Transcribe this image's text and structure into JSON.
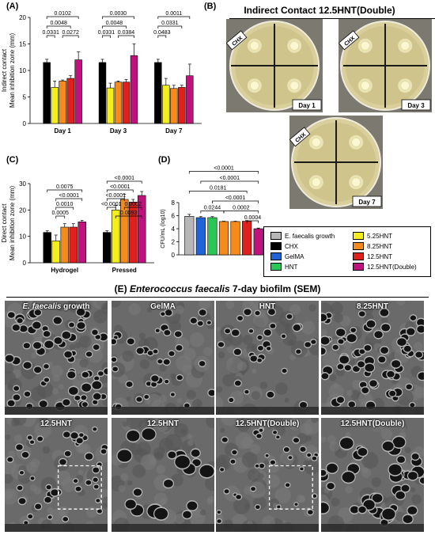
{
  "panels": {
    "A": "(A)",
    "B": "(B)",
    "C": "(C)",
    "D": "(D)",
    "E": "(E)"
  },
  "colors": {
    "E. faecalis growth": "#b7b7b7",
    "CHX": "#000000",
    "GelMA": "#1f63d6",
    "HNT": "#2bc754",
    "5.25HNT": "#f4ee1f",
    "8.25HNT": "#f58a1d",
    "12.5HNT": "#e0201c",
    "12.5HNT(Double)": "#c0127c"
  },
  "chart_data": [
    {
      "id": "A",
      "type": "bar",
      "ylabel_lines": [
        "Indirect contact",
        "Mean inhibition zone (mm)"
      ],
      "ylim": [
        0,
        20
      ],
      "yticks": [
        0,
        5,
        10,
        15,
        20
      ],
      "categories": [
        "Day 1",
        "Day 3",
        "Day 7"
      ],
      "series": [
        {
          "name": "CHX",
          "values": [
            11.5,
            11.5,
            11.5
          ],
          "err": [
            0.6,
            0.6,
            0.6
          ]
        },
        {
          "name": "5.25HNT",
          "values": [
            6.8,
            6.7,
            7.2
          ],
          "err": [
            1.2,
            0.9,
            1.3
          ]
        },
        {
          "name": "8.25HNT",
          "values": [
            8.0,
            7.8,
            6.6
          ],
          "err": [
            0.2,
            0.2,
            0.6
          ]
        },
        {
          "name": "12.5HNT",
          "values": [
            8.5,
            7.8,
            6.8
          ],
          "err": [
            0.5,
            0.5,
            0.4
          ]
        },
        {
          "name": "12.5HNT(Double)",
          "values": [
            12.0,
            12.8,
            9.0
          ],
          "err": [
            1.5,
            2.2,
            2.2
          ]
        }
      ],
      "brackets": [
        {
          "group": 0,
          "from": 0,
          "to": 4,
          "label": "0.0102",
          "level": 3
        },
        {
          "group": 0,
          "from": 0,
          "to": 3,
          "label": "0.0048",
          "level": 2
        },
        {
          "group": 0,
          "from": 0,
          "to": 1,
          "label": "0.0331",
          "level": 1
        },
        {
          "group": 0,
          "from": 2,
          "to": 4,
          "label": "0.0272",
          "level": 1
        },
        {
          "group": 1,
          "from": 0,
          "to": 4,
          "label": "0.0030",
          "level": 3
        },
        {
          "group": 1,
          "from": 0,
          "to": 3,
          "label": "0.0048",
          "level": 2
        },
        {
          "group": 1,
          "from": 0,
          "to": 1,
          "label": "0.0331",
          "level": 1
        },
        {
          "group": 1,
          "from": 2,
          "to": 4,
          "label": "0.0384",
          "level": 1
        },
        {
          "group": 2,
          "from": 0,
          "to": 4,
          "label": "0.0011",
          "level": 3
        },
        {
          "group": 2,
          "from": 0,
          "to": 3,
          "label": "0.0331",
          "level": 2
        },
        {
          "group": 2,
          "from": 0,
          "to": 1,
          "label": "0.0483",
          "level": 1
        }
      ]
    },
    {
      "id": "C",
      "type": "bar",
      "ylabel_lines": [
        "Direct contact",
        "Mean inhibition zone (mm)"
      ],
      "ylim": [
        0,
        30
      ],
      "yticks": [
        0,
        10,
        20,
        30
      ],
      "categories": [
        "Hydrogel",
        "Pressed"
      ],
      "series": [
        {
          "name": "CHX",
          "values": [
            11.5,
            11.5
          ],
          "err": [
            0.6,
            0.6
          ]
        },
        {
          "name": "5.25HNT",
          "values": [
            8.3,
            20.0
          ],
          "err": [
            2.2,
            1.8
          ]
        },
        {
          "name": "8.25HNT",
          "values": [
            13.5,
            24.0
          ],
          "err": [
            1.3,
            2.0
          ]
        },
        {
          "name": "12.5HNT",
          "values": [
            13.5,
            23.0
          ],
          "err": [
            1.3,
            1.0
          ]
        },
        {
          "name": "12.5HNT(Double)",
          "values": [
            15.5,
            25.5
          ],
          "err": [
            0.6,
            1.5
          ]
        }
      ],
      "brackets": [
        {
          "group": 0,
          "from": 0,
          "to": 4,
          "label": "0.0075",
          "level": 4
        },
        {
          "group": 0,
          "from": 1,
          "to": 4,
          "label": "<0.0001",
          "level": 3
        },
        {
          "group": 0,
          "from": 1,
          "to": 3,
          "label": "0.0010",
          "level": 2
        },
        {
          "group": 0,
          "from": 1,
          "to": 2,
          "label": "0.0005",
          "level": 1
        },
        {
          "group": 1,
          "from": 0,
          "to": 4,
          "label": "<0.0001",
          "level": 5
        },
        {
          "group": 1,
          "from": 0,
          "to": 3,
          "label": "<0.0001",
          "level": 4
        },
        {
          "group": 1,
          "from": 0,
          "to": 2,
          "label": "<0.0001",
          "level": 3
        },
        {
          "group": 1,
          "from": 0,
          "to": 1,
          "label": "<0.0001",
          "level": 2
        },
        {
          "group": 1,
          "from": 2,
          "to": 4,
          "label": "0.0002",
          "level": 2
        },
        {
          "group": 1,
          "from": 1,
          "to": 4,
          "label": "0.0093",
          "level": 1
        }
      ]
    },
    {
      "id": "D",
      "type": "bar",
      "ylabel": "CFU/mL (log10)",
      "ylim": [
        0,
        8
      ],
      "yticks": [
        0,
        2,
        4,
        6,
        8
      ],
      "categories": [
        "E. faecalis growth",
        "CHX",
        "GelMA",
        "HNT",
        "8.25HNT",
        "12.5HNT",
        "12.5HNT(Double)"
      ],
      "values": [
        5.9,
        5.7,
        5.7,
        5.1,
        5.1,
        5.15,
        4.0
      ],
      "err": [
        0.3,
        0.15,
        0.15,
        0.05,
        0.05,
        0.1,
        0.1
      ],
      "bar_colors": [
        "#b7b7b7",
        "#1f63d6",
        "#2bc754",
        "#f58a1d",
        "#f58a1d",
        "#e0201c",
        "#c0127c"
      ],
      "brackets": [
        {
          "from": 0,
          "to": 6,
          "label": "<0.0001",
          "level": 6
        },
        {
          "from": 1,
          "to": 6,
          "label": "<0.0001",
          "level": 5
        },
        {
          "from": 0,
          "to": 5,
          "label": "0.0181",
          "level": 4
        },
        {
          "from": 2,
          "to": 6,
          "label": "<0.0001",
          "level": 3
        },
        {
          "from": 1,
          "to": 3,
          "label": "0.0244",
          "level": 2
        },
        {
          "from": 3,
          "to": 6,
          "label": "0.0002",
          "level": 2
        },
        {
          "from": 5,
          "to": 6,
          "label": "0.0004",
          "level": 1
        }
      ]
    }
  ],
  "legend": [
    {
      "name": "E. faecalis growth",
      "color": "#b7b7b7"
    },
    {
      "name": "5.25HNT",
      "color": "#f4ee1f"
    },
    {
      "name": "CHX",
      "color": "#000000"
    },
    {
      "name": "8.25HNT",
      "color": "#f58a1d"
    },
    {
      "name": "GelMA",
      "color": "#1f63d6"
    },
    {
      "name": "12.5HNT",
      "color": "#e0201c"
    },
    {
      "name": "HNT",
      "color": "#2bc754"
    },
    {
      "name": "12.5HNT(Double)",
      "color": "#c0127c"
    }
  ],
  "panel_b": {
    "title": "Indirect Contact 12.5HNT(Double)",
    "plates": [
      {
        "label": "CHX",
        "day": "Day 1"
      },
      {
        "label": "CHX",
        "day": "Day 3"
      },
      {
        "label": "CHX",
        "day": "Day 7"
      }
    ]
  },
  "panel_e": {
    "title_italic": "Enterococcus faecalis",
    "title_rest": " 7-day biofilm (SEM)",
    "tiles": [
      {
        "label": "E. faecalis growth",
        "label_italic": "E. faecalis",
        "label_rest": " growth",
        "density": 1.0,
        "pore": 5
      },
      {
        "label": "GelMA",
        "density": 0.55,
        "pore": 4
      },
      {
        "label": "HNT",
        "density": 0.45,
        "pore": 4
      },
      {
        "label": "8.25HNT",
        "density": 1.0,
        "pore": 5
      },
      {
        "label": "12.5HNT",
        "density": 0.6,
        "pore": 4,
        "inset": true
      },
      {
        "label": "12.5HNT",
        "density": 0.25,
        "pore": 8
      },
      {
        "label": "12.5HNT(Double)",
        "density": 0.5,
        "pore": 3,
        "inset": true
      },
      {
        "label": "12.5HNT(Double)",
        "density": 0.6,
        "pore": 7
      }
    ]
  }
}
